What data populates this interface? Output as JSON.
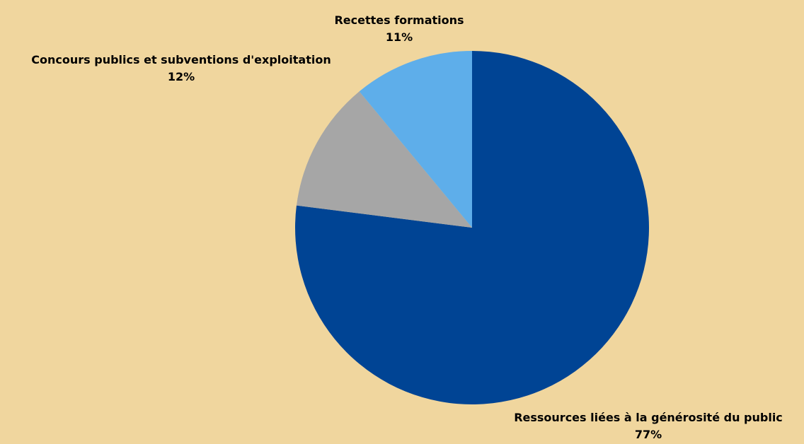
{
  "chart_data": {
    "type": "pie",
    "title": "",
    "background": "#f0d69e",
    "slices": [
      {
        "label": "Ressources liées à la générosité du public",
        "value": 77,
        "pct_label": "77%",
        "color": "#004494"
      },
      {
        "label": "Concours publics et subventions d'exploitation",
        "value": 12,
        "pct_label": "12%",
        "color": "#a6a6a6"
      },
      {
        "label": "Recettes formations",
        "value": 11,
        "pct_label": "11%",
        "color": "#5eaeea"
      }
    ]
  }
}
